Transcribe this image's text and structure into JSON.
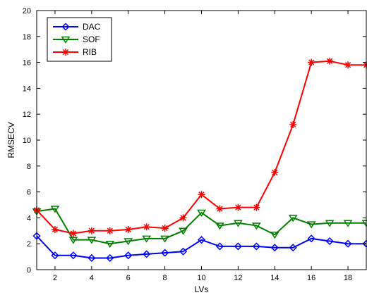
{
  "chart_data": {
    "type": "line",
    "xlabel": "LVs",
    "ylabel": "RMSECV",
    "xlim": [
      1,
      19
    ],
    "ylim": [
      0,
      20
    ],
    "xticks": [
      2,
      4,
      6,
      8,
      10,
      12,
      14,
      16,
      18
    ],
    "yticks": [
      0,
      2,
      4,
      6,
      8,
      10,
      12,
      14,
      16,
      18,
      20
    ],
    "legend_position": "top-left",
    "grid": false,
    "x": [
      1,
      2,
      3,
      4,
      5,
      6,
      7,
      8,
      9,
      10,
      11,
      12,
      13,
      14,
      15,
      16,
      17,
      18,
      19
    ],
    "series": [
      {
        "name": "DAC",
        "color": "#0000ff",
        "marker": "diamond",
        "values": [
          2.6,
          1.1,
          1.1,
          0.9,
          0.9,
          1.1,
          1.2,
          1.3,
          1.4,
          2.3,
          1.8,
          1.8,
          1.8,
          1.7,
          1.7,
          2.4,
          2.2,
          2.0,
          2.0
        ]
      },
      {
        "name": "SOF",
        "color": "#007f00",
        "marker": "triangle-down",
        "values": [
          4.5,
          4.7,
          2.3,
          2.3,
          2.0,
          2.2,
          2.4,
          2.4,
          3.0,
          4.4,
          3.4,
          3.6,
          3.4,
          2.7,
          4.0,
          3.5,
          3.6,
          3.6,
          3.6
        ]
      },
      {
        "name": "RIB",
        "color": "#ff0000",
        "marker": "asterisk",
        "values": [
          4.6,
          3.1,
          2.8,
          3.0,
          3.0,
          3.1,
          3.3,
          3.2,
          4.0,
          5.8,
          4.7,
          4.8,
          4.8,
          7.5,
          11.2,
          16.0,
          16.1,
          15.8,
          15.8
        ]
      }
    ]
  }
}
